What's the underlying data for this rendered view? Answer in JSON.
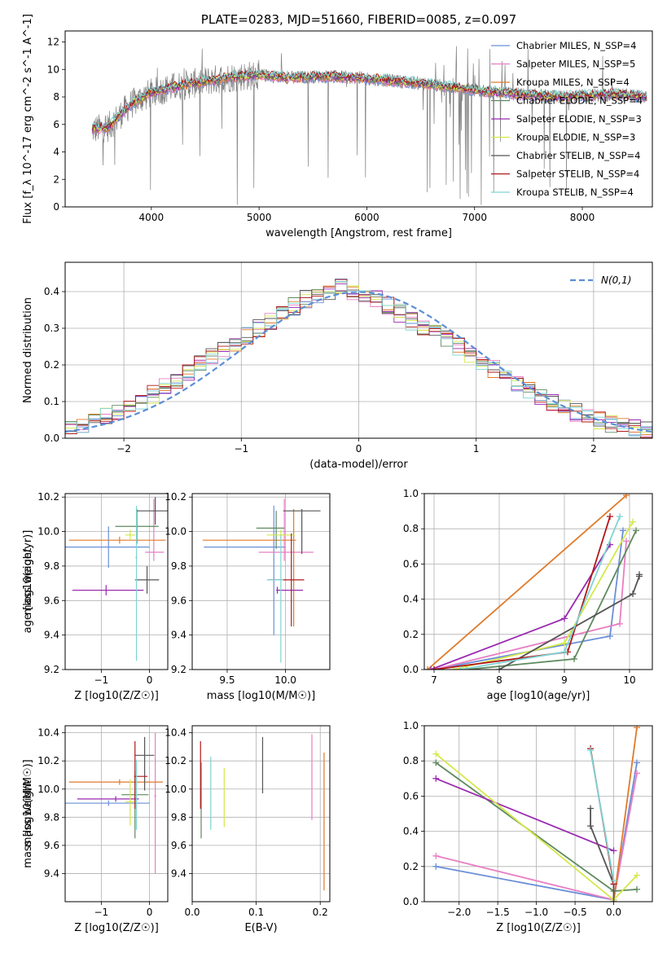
{
  "chart_data": [
    {
      "id": "spectrum",
      "type": "line",
      "title": "PLATE=0283, MJD=51660, FIBERID=0085, z=0.097",
      "xlabel": "wavelength [Angstrom, rest frame]",
      "ylabel": "Flux [f_λ 10^-17 erg cm^-2 s^-1 A^-1]",
      "xlim": [
        3200,
        8650
      ],
      "ylim": [
        0,
        12.8
      ],
      "xticks": [
        4000,
        5000,
        6000,
        7000,
        8000
      ],
      "yticks": [
        0,
        2,
        4,
        6,
        8,
        10,
        12
      ],
      "observed_color": "#808080",
      "continuum": [
        [
          3450,
          5.6
        ],
        [
          3600,
          5.8
        ],
        [
          3700,
          6.6
        ],
        [
          3800,
          7.4
        ],
        [
          3900,
          7.9
        ],
        [
          4000,
          8.3
        ],
        [
          4200,
          8.7
        ],
        [
          4400,
          9.0
        ],
        [
          4700,
          9.4
        ],
        [
          5000,
          9.6
        ],
        [
          5300,
          9.4
        ],
        [
          5600,
          9.5
        ],
        [
          5900,
          9.4
        ],
        [
          6200,
          9.2
        ],
        [
          6500,
          9.0
        ],
        [
          6800,
          8.7
        ],
        [
          7100,
          8.4
        ],
        [
          7400,
          8.2
        ],
        [
          7800,
          8.0
        ],
        [
          8300,
          8.2
        ],
        [
          8600,
          8.0
        ]
      ],
      "legend_position": "upper right",
      "legend": [
        {
          "label": "Chabrier MILES, N_SSP=4",
          "color": "#6a8fd8"
        },
        {
          "label": "Salpeter MILES, N_SSP=5",
          "color": "#e87ec3"
        },
        {
          "label": "Kroupa MILES, N_SSP=4",
          "color": "#e07a2a"
        },
        {
          "label": "Chabrier ELODIE, N_SSP=4",
          "color": "#5e8a5e"
        },
        {
          "label": "Salpeter ELODIE, N_SSP=3",
          "color": "#9a2ab0"
        },
        {
          "label": "Kroupa ELODIE, N_SSP=3",
          "color": "#d4e84a"
        },
        {
          "label": "Chabrier STELIB, N_SSP=4",
          "color": "#555555"
        },
        {
          "label": "Salpeter STELIB, N_SSP=4",
          "color": "#b01818"
        },
        {
          "label": "Kroupa STELIB, N_SSP=4",
          "color": "#7fd4d4"
        }
      ]
    },
    {
      "id": "residuals",
      "type": "step",
      "xlabel": "(data-model)/error",
      "ylabel": "Normed distribution",
      "xlim": [
        -2.5,
        2.5
      ],
      "ylim": [
        0,
        0.48
      ],
      "xticks": [
        -2,
        -1,
        0,
        1,
        2
      ],
      "yticks": [
        0.0,
        0.1,
        0.2,
        0.3,
        0.4
      ],
      "grid": true,
      "bins": 50,
      "reference_label": "N(0,1)",
      "reference_color": "#5b8ed6",
      "histogram": [
        0.03,
        0.03,
        0.05,
        0.06,
        0.07,
        0.09,
        0.1,
        0.12,
        0.14,
        0.16,
        0.18,
        0.2,
        0.22,
        0.24,
        0.26,
        0.28,
        0.3,
        0.32,
        0.34,
        0.36,
        0.38,
        0.39,
        0.4,
        0.41,
        0.4,
        0.39,
        0.38,
        0.36,
        0.34,
        0.32,
        0.3,
        0.29,
        0.27,
        0.25,
        0.23,
        0.21,
        0.19,
        0.17,
        0.15,
        0.13,
        0.11,
        0.1,
        0.08,
        0.07,
        0.06,
        0.05,
        0.04,
        0.03,
        0.03,
        0.02
      ],
      "series_colors": [
        "#6a8fd8",
        "#e87ec3",
        "#e07a2a",
        "#5e8a5e",
        "#9a2ab0",
        "#d4e84a",
        "#555555",
        "#b01818",
        "#7fd4d4"
      ]
    },
    {
      "id": "age_vs_z",
      "type": "errorbar",
      "xlabel": "Z [log10(Z/Z☉)]",
      "ylabel": "age [log10(age/yr)]",
      "xlim": [
        -1.75,
        0.38
      ],
      "ylim": [
        9.2,
        10.22
      ],
      "xticks": [
        -1,
        0
      ],
      "yticks": [
        9.2,
        9.4,
        9.6,
        9.8,
        10.0,
        10.2
      ],
      "grid": true,
      "points": [
        {
          "x": -0.85,
          "y": 9.91,
          "xerr": [
            0.99,
            0.85
          ],
          "yerr": [
            0.12,
            0.12
          ],
          "color": "#6a8fd8"
        },
        {
          "x": 0.09,
          "y": 9.88,
          "xerr": [
            0.18,
            0.21
          ],
          "yerr": [
            0.05,
            0.31
          ],
          "color": "#e87ec3"
        },
        {
          "x": -0.62,
          "y": 9.95,
          "xerr": [
            1.05,
            0.96
          ],
          "yerr": [
            0.02,
            0.02
          ],
          "color": "#e07a2a"
        },
        {
          "x": -0.26,
          "y": 10.03,
          "xerr": [
            0.45,
            0.45
          ],
          "yerr": [
            0.1,
            0.1
          ],
          "color": "#5e8a5e"
        },
        {
          "x": -0.9,
          "y": 9.66,
          "xerr": [
            0.7,
            0.78
          ],
          "yerr": [
            0.03,
            0.03
          ],
          "color": "#9a2ab0"
        },
        {
          "x": -0.4,
          "y": 9.98,
          "xerr": [
            0.1,
            0.1
          ],
          "yerr": [
            0.03,
            0.03
          ],
          "color": "#d4e84a"
        },
        {
          "x": 0.12,
          "y": 10.12,
          "xerr": [
            0.38,
            0.38
          ],
          "yerr": [
            0.08,
            0.08
          ],
          "color": "#555555"
        },
        {
          "x": -0.05,
          "y": 9.72,
          "xerr": [
            0.25,
            0.25
          ],
          "yerr": [
            0.08,
            0.08
          ],
          "color": "#555555"
        },
        {
          "x": -0.27,
          "y": 9.85,
          "xerr": [
            0.02,
            0.02
          ],
          "yerr": [
            0.6,
            0.3
          ],
          "color": "#7fd4d4"
        }
      ]
    },
    {
      "id": "age_vs_mass",
      "type": "errorbar",
      "xlabel": "mass [log10(M/M☉)]",
      "ylabel": "",
      "xlim": [
        9.2,
        10.38
      ],
      "ylim": [
        9.2,
        10.22
      ],
      "xticks": [
        9.5,
        10.0
      ],
      "yticks": [
        9.2,
        9.4,
        9.6,
        9.8,
        10.0,
        10.2
      ],
      "grid": true,
      "points": [
        {
          "x": 9.9,
          "y": 9.91,
          "xerr": [
            0.6,
            0.1
          ],
          "yerr": [
            0.51,
            0.24
          ],
          "color": "#6a8fd8"
        },
        {
          "x": 9.99,
          "y": 9.88,
          "xerr": [
            0.22,
            0.25
          ],
          "yerr": [
            0.05,
            0.31
          ],
          "color": "#e87ec3"
        },
        {
          "x": 10.07,
          "y": 9.95,
          "xerr": [
            0.78,
            0.02
          ],
          "yerr": [
            0.5,
            0.18
          ],
          "color": "#e07a2a"
        },
        {
          "x": 9.92,
          "y": 10.02,
          "xerr": [
            0.17,
            0.07
          ],
          "yerr": [
            0.12,
            0.1
          ],
          "color": "#5e8a5e"
        },
        {
          "x": 9.93,
          "y": 9.66,
          "xerr": [
            0.01,
            0.22
          ],
          "yerr": [
            0.02,
            0.02
          ],
          "color": "#9a2ab0"
        },
        {
          "x": 9.96,
          "y": 9.98,
          "xerr": [
            0.12,
            0.12
          ],
          "yerr": [
            0.03,
            0.03
          ],
          "color": "#d4e84a"
        },
        {
          "x": 10.14,
          "y": 10.12,
          "xerr": [
            0.16,
            0.16
          ],
          "yerr": [
            0.25,
            0.01
          ],
          "color": "#555555"
        },
        {
          "x": 10.05,
          "y": 9.72,
          "xerr": [
            0.2,
            0.11
          ],
          "yerr": [
            0.27,
            0.27
          ],
          "color": "#b01818"
        },
        {
          "x": 9.96,
          "y": 9.72,
          "xerr": [
            0.12,
            0.02
          ],
          "yerr": [
            0.48,
            0.26
          ],
          "color": "#7fd4d4"
        }
      ]
    },
    {
      "id": "weight_vs_age",
      "type": "line",
      "xlabel": "age [log10(age/yr)]",
      "ylabel": "mass weight",
      "xlim": [
        6.85,
        10.35
      ],
      "ylim": [
        0,
        1
      ],
      "xticks": [
        7,
        8,
        9,
        10
      ],
      "yticks": [
        0.0,
        0.2,
        0.4,
        0.6,
        0.8,
        1.0
      ],
      "grid": true,
      "series": [
        {
          "color": "#6a8fd8",
          "x": [
            7.0,
            9.7,
            9.9
          ],
          "y": [
            0.0,
            0.19,
            0.79
          ]
        },
        {
          "color": "#e87ec3",
          "x": [
            7.0,
            9.85,
            9.95
          ],
          "y": [
            0.0,
            0.26,
            0.73
          ]
        },
        {
          "color": "#e07a2a",
          "x": [
            6.9,
            9.95
          ],
          "y": [
            0.0,
            0.99
          ]
        },
        {
          "color": "#5e8a5e",
          "x": [
            7.5,
            9.15,
            10.1
          ],
          "y": [
            0.0,
            0.06,
            0.79
          ]
        },
        {
          "color": "#9a2ab0",
          "x": [
            6.95,
            9.0,
            9.7
          ],
          "y": [
            0.0,
            0.29,
            0.71
          ]
        },
        {
          "color": "#d4e84a",
          "x": [
            7.3,
            9.0,
            10.05
          ],
          "y": [
            0.0,
            0.15,
            0.84
          ]
        },
        {
          "color": "#555555",
          "x": [
            8.0,
            10.05,
            10.15,
            10.15
          ],
          "y": [
            0.0,
            0.43,
            0.53,
            0.54
          ]
        },
        {
          "color": "#b01818",
          "x": [
            7.0,
            9.05,
            9.7
          ],
          "y": [
            0.0,
            0.1,
            0.87
          ]
        },
        {
          "color": "#7fd4d4",
          "x": [
            7.4,
            9.0,
            9.85
          ],
          "y": [
            0.0,
            0.1,
            0.87
          ]
        }
      ]
    },
    {
      "id": "mass_vs_z",
      "type": "errorbar",
      "xlabel": "Z [log10(Z/Z☉)]",
      "ylabel": "mass [log10(M/M☉)]",
      "xlim": [
        -1.75,
        0.38
      ],
      "ylim": [
        9.2,
        10.45
      ],
      "xticks": [
        -1,
        0
      ],
      "yticks": [
        9.4,
        9.6,
        9.8,
        10.0,
        10.2,
        10.4
      ],
      "grid": true,
      "points": [
        {
          "x": -0.85,
          "y": 9.9,
          "xerr": [
            0.99,
            0.85
          ],
          "yerr": [
            0.02,
            0.02
          ],
          "color": "#6a8fd8"
        },
        {
          "x": 0.12,
          "y": 9.95,
          "xerr": [
            0.02,
            0.02
          ],
          "yerr": [
            0.55,
            0.45
          ],
          "color": "#e87ec3"
        },
        {
          "x": -0.62,
          "y": 10.05,
          "xerr": [
            1.05,
            0.9
          ],
          "yerr": [
            0.02,
            0.02
          ],
          "color": "#e07a2a"
        },
        {
          "x": -0.3,
          "y": 9.96,
          "xerr": [
            0.28,
            0.28
          ],
          "yerr": [
            0.31,
            0.17
          ],
          "color": "#5e8a5e"
        },
        {
          "x": -0.7,
          "y": 9.93,
          "xerr": [
            0.8,
            0.48
          ],
          "yerr": [
            0.02,
            0.02
          ],
          "color": "#9a2ab0"
        },
        {
          "x": -0.4,
          "y": 9.91,
          "xerr": [
            0.1,
            0.1
          ],
          "yerr": [
            0.17,
            0.16
          ],
          "color": "#d4e84a"
        },
        {
          "x": -0.1,
          "y": 10.24,
          "xerr": [
            0.2,
            0.2
          ],
          "yerr": [
            0.25,
            0.13
          ],
          "color": "#555555"
        },
        {
          "x": -0.3,
          "y": 10.09,
          "xerr": [
            0.02,
            0.26
          ],
          "yerr": [
            0.23,
            0.25
          ],
          "color": "#b01818"
        },
        {
          "x": -0.27,
          "y": 9.96,
          "xerr": [
            0.02,
            0.02
          ],
          "yerr": [
            0.25,
            0.25
          ],
          "color": "#7fd4d4"
        }
      ]
    },
    {
      "id": "mass_vs_ebv",
      "type": "errorbar",
      "xlabel": "E(B-V)",
      "ylabel": "",
      "xlim": [
        0.0,
        0.215
      ],
      "ylim": [
        9.2,
        10.45
      ],
      "xticks": [
        0.0,
        0.1,
        0.2
      ],
      "yticks": [
        9.4,
        9.6,
        9.8,
        10.0,
        10.2,
        10.4
      ],
      "grid": true,
      "points": [
        {
          "x": 0.187,
          "y": 10.08,
          "yerr": [
            0.3,
            0.31
          ],
          "color": "#e87ec3"
        },
        {
          "x": 0.206,
          "y": 9.76,
          "yerr": [
            0.48,
            0.5
          ],
          "color": "#e07a2a"
        },
        {
          "x": 0.014,
          "y": 9.92,
          "yerr": [
            0.27,
            0.27
          ],
          "color": "#5e8a5e"
        },
        {
          "x": 0.05,
          "y": 9.94,
          "yerr": [
            0.21,
            0.21
          ],
          "color": "#d4e84a"
        },
        {
          "x": 0.11,
          "y": 10.17,
          "yerr": [
            0.2,
            0.2
          ],
          "color": "#555555"
        },
        {
          "x": 0.013,
          "y": 10.1,
          "yerr": [
            0.24,
            0.24
          ],
          "color": "#b01818"
        },
        {
          "x": 0.029,
          "y": 9.97,
          "yerr": [
            0.26,
            0.26
          ],
          "color": "#7fd4d4"
        }
      ]
    },
    {
      "id": "weight_vs_z",
      "type": "line",
      "xlabel": "Z [log10(Z/Z☉)]",
      "ylabel": "mass weight",
      "xlim": [
        -2.45,
        0.5
      ],
      "ylim": [
        0,
        1
      ],
      "xticks": [
        -2.0,
        -1.5,
        -1.0,
        -0.5,
        0.0
      ],
      "yticks": [
        0.0,
        0.2,
        0.4,
        0.6,
        0.8,
        1.0
      ],
      "grid": true,
      "series": [
        {
          "color": "#6a8fd8",
          "x": [
            -2.3,
            0.0,
            0.3
          ],
          "y": [
            0.2,
            0.01,
            0.79
          ]
        },
        {
          "color": "#e87ec3",
          "x": [
            -2.3,
            0.0,
            0.3
          ],
          "y": [
            0.26,
            0.01,
            0.73
          ]
        },
        {
          "color": "#e07a2a",
          "x": [
            0.0,
            0.0,
            0.3
          ],
          "y": [
            0.0,
            0.0,
            0.99
          ]
        },
        {
          "color": "#5e8a5e",
          "x": [
            -2.3,
            0.0,
            0.3
          ],
          "y": [
            0.79,
            0.06,
            0.07
          ]
        },
        {
          "color": "#9a2ab0",
          "x": [
            -2.3,
            0.0
          ],
          "y": [
            0.7,
            0.29
          ]
        },
        {
          "color": "#d4e84a",
          "x": [
            -2.3,
            0.0,
            0.3
          ],
          "y": [
            0.84,
            0.01,
            0.15
          ]
        },
        {
          "color": "#555555",
          "x": [
            -0.3,
            -0.3,
            0.0,
            0.0
          ],
          "y": [
            0.53,
            0.43,
            0.1,
            0.0
          ]
        },
        {
          "color": "#b01818",
          "x": [
            -0.3,
            0.0
          ],
          "y": [
            0.87,
            0.1
          ]
        },
        {
          "color": "#7fd4d4",
          "x": [
            -0.3,
            0.0
          ],
          "y": [
            0.86,
            0.12
          ]
        }
      ]
    }
  ]
}
